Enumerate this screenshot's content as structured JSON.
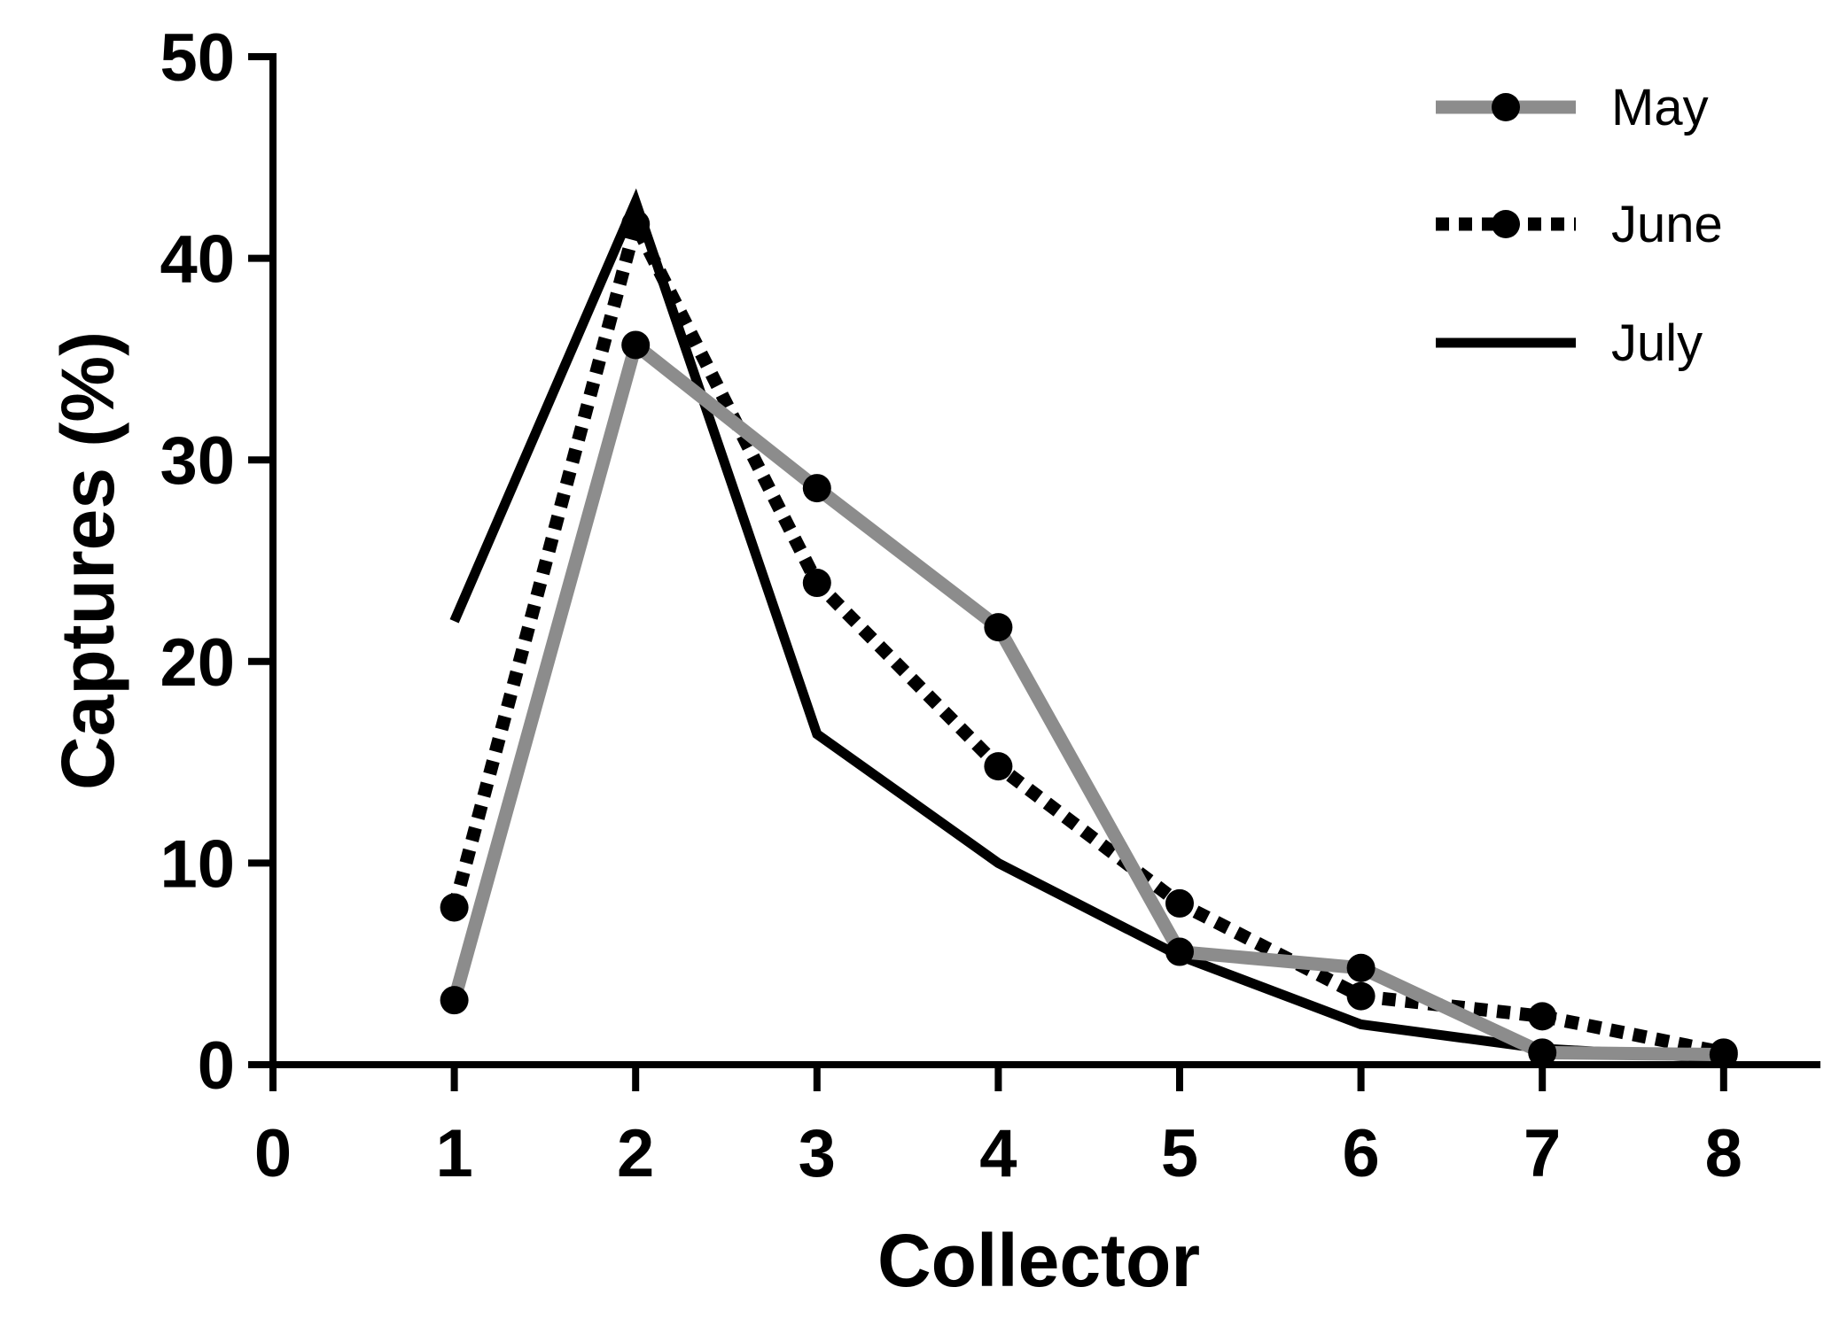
{
  "chart_data": {
    "type": "line",
    "title": "",
    "xlabel": "Collector",
    "ylabel": "Captures (%)",
    "xlim": [
      0,
      8
    ],
    "ylim": [
      0,
      50
    ],
    "xticks": [
      0,
      1,
      2,
      3,
      4,
      5,
      6,
      7,
      8
    ],
    "yticks": [
      0,
      10,
      20,
      30,
      40,
      50
    ],
    "grid": false,
    "legend_position": "top-right",
    "series": [
      {
        "name": "May",
        "color": "#8c8c8c",
        "style": "solid",
        "marker": "circle",
        "x": [
          1,
          2,
          3,
          4,
          5,
          6,
          7,
          8
        ],
        "y": [
          3.2,
          35.7,
          28.6,
          21.7,
          5.6,
          4.8,
          0.6,
          0.5
        ]
      },
      {
        "name": "June",
        "color": "#000000",
        "style": "dotted",
        "marker": "circle",
        "x": [
          1,
          2,
          3,
          4,
          5,
          6,
          7,
          8
        ],
        "y": [
          7.8,
          41.7,
          23.9,
          14.8,
          8.0,
          3.4,
          2.4,
          0.6
        ]
      },
      {
        "name": "July",
        "color": "#000000",
        "style": "solid",
        "marker": "none",
        "x": [
          1,
          2,
          3,
          4,
          5,
          6,
          7,
          8
        ],
        "y": [
          22.0,
          42.8,
          16.4,
          10.0,
          5.4,
          2.0,
          0.8,
          0.3
        ]
      }
    ]
  }
}
